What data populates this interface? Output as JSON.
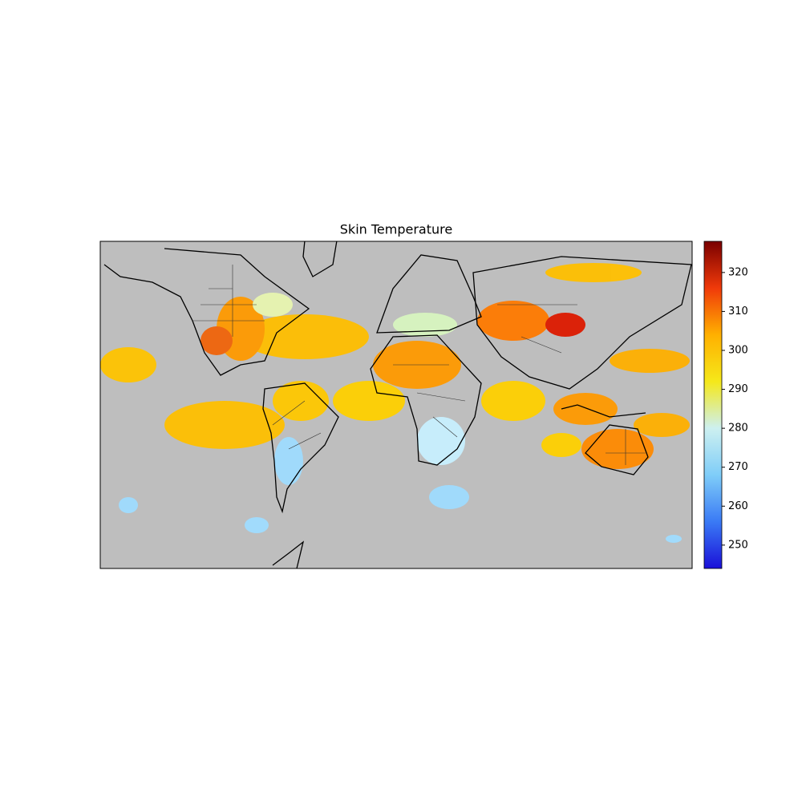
{
  "chart_data": {
    "type": "map",
    "title": "Skin Temperature",
    "colorbar": {
      "lim": [
        244,
        328
      ],
      "ticks": [
        250,
        260,
        270,
        280,
        290,
        300,
        310,
        320
      ],
      "colors": [
        "#1a10d8",
        "#3a7af5",
        "#7fcdf8",
        "#cdf0f0",
        "#f5e81a",
        "#ffb000",
        "#f03a0a",
        "#7a0000"
      ]
    },
    "background": "#bebebe"
  }
}
